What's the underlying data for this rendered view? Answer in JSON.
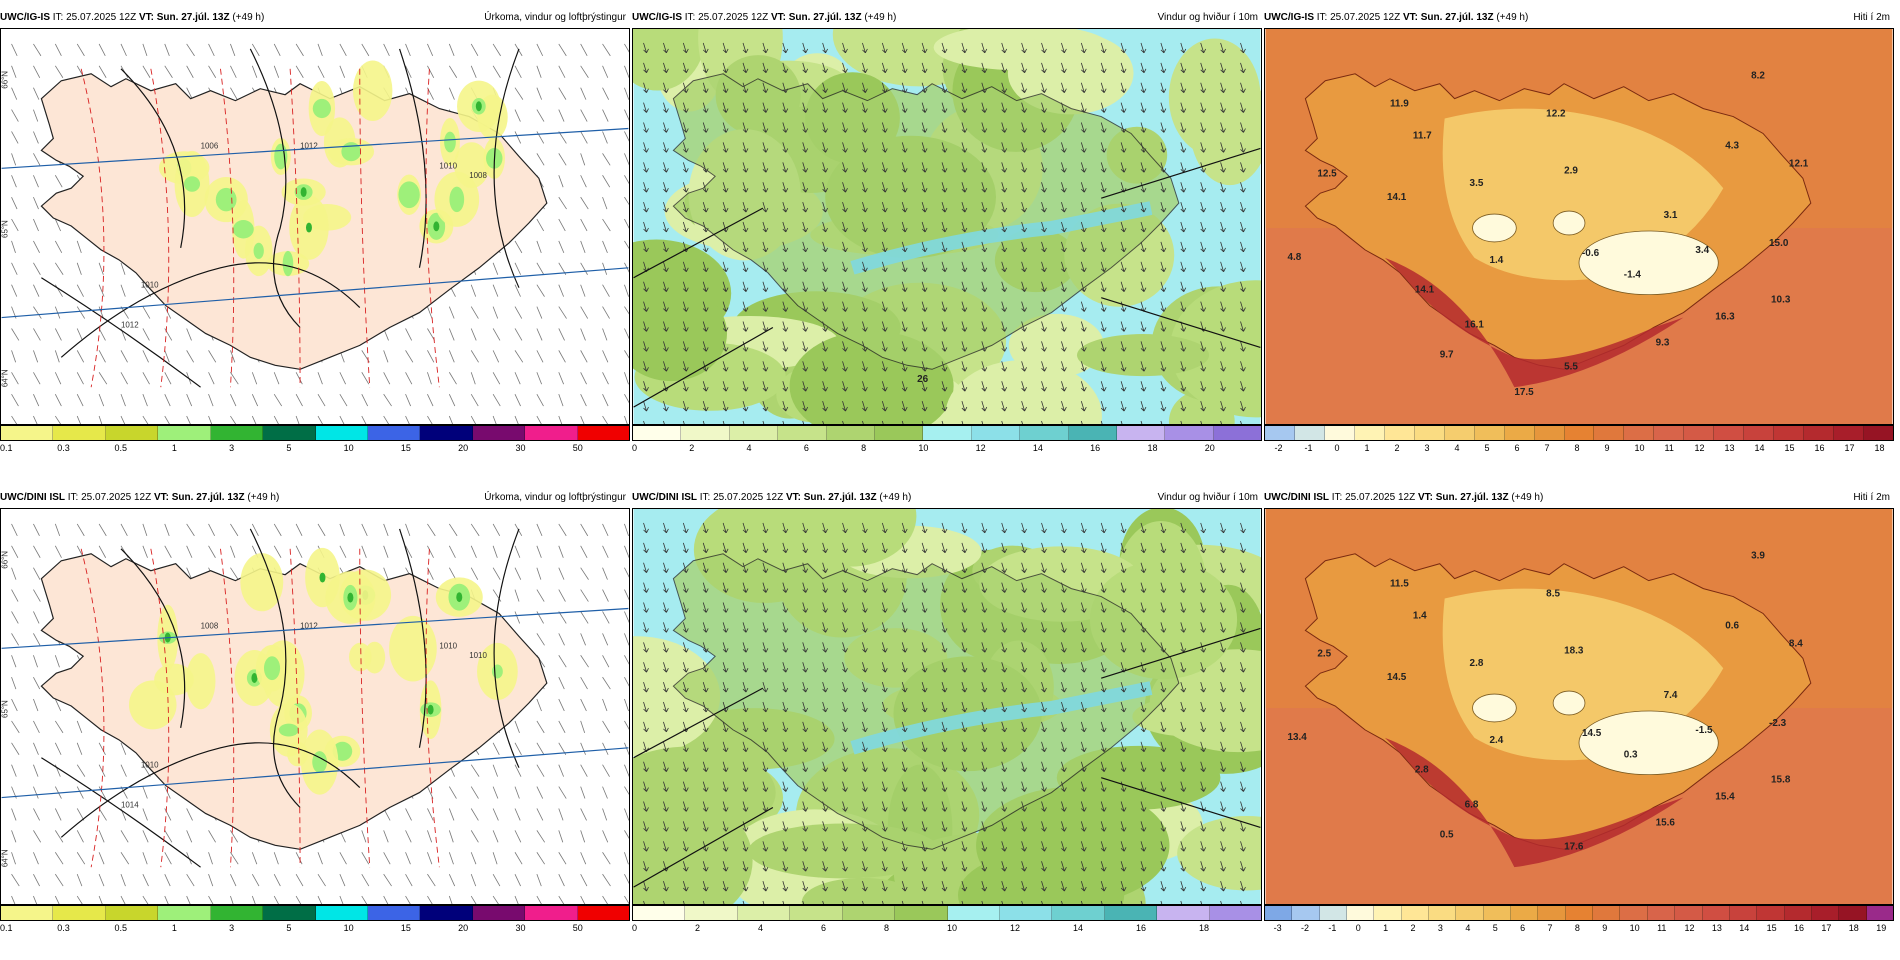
{
  "panels": [
    {
      "model": "UWC/IG-IS",
      "it_label": "IT:",
      "it": "25.07.2025 12Z",
      "vt_label": "VT:",
      "vt": "Sun. 27.júl. 13Z",
      "lead": "(+49 h)",
      "title": "Úrkoma, vindur og loftþrýstingur",
      "type": "precip",
      "scale_ticks": [
        "0.1",
        "0.3",
        "0.5",
        "1",
        "3",
        "5",
        "10",
        "15",
        "20",
        "30",
        "50"
      ],
      "scale_colors": [
        "#f5f58a",
        "#e6e84a",
        "#c8d62c",
        "#9ef07a",
        "#32b432",
        "#006e46",
        "#00e6e6",
        "#3c64e6",
        "#00007a",
        "#780a6e",
        "#f01e8c",
        "#f00000"
      ],
      "isobars": [
        "1012",
        "1010",
        "1008",
        "1006",
        "1012",
        "1010"
      ],
      "lat_labels": [
        "66°N",
        "65°N",
        "64°N"
      ],
      "temps": []
    },
    {
      "model": "UWC/IG-IS",
      "it_label": "IT:",
      "it": "25.07.2025 12Z",
      "vt_label": "VT:",
      "vt": "Sun. 27.júl. 13Z",
      "lead": "(+49 h)",
      "title": "Vindur og hviður í 10m",
      "type": "wind",
      "scale_ticks": [
        "0",
        "2",
        "4",
        "6",
        "8",
        "10",
        "12",
        "14",
        "16",
        "18",
        "20"
      ],
      "scale_colors": [
        "#ffffea",
        "#f0f8c8",
        "#dcefa8",
        "#c6e38a",
        "#aed470",
        "#9ac85a",
        "#a6f0f0",
        "#8ce0e8",
        "#6ed0d0",
        "#4ab4b4",
        "#c8b4f0",
        "#a890e6",
        "#8c70d8"
      ],
      "max_label": "26",
      "temps": []
    },
    {
      "model": "UWC/IG-IS",
      "it_label": "IT:",
      "it": "25.07.2025 12Z",
      "vt_label": "VT:",
      "vt": "Sun. 27.júl. 13Z",
      "lead": "(+49 h)",
      "title": "Hiti í 2m",
      "type": "temp",
      "scale_ticks": [
        "-2",
        "-1",
        "0",
        "1",
        "2",
        "3",
        "4",
        "5",
        "6",
        "7",
        "8",
        "9",
        "10",
        "11",
        "12",
        "13",
        "14",
        "15",
        "16",
        "17",
        "18"
      ],
      "scale_colors": [
        "#a6c8f0",
        "#d2e6e6",
        "#fffadc",
        "#fff3b4",
        "#ffe696",
        "#fadc82",
        "#f5cd6e",
        "#f0be5a",
        "#ebaa46",
        "#e6963c",
        "#e68232",
        "#e0783c",
        "#dc6e46",
        "#d8644a",
        "#d45a46",
        "#d04e42",
        "#c8423c",
        "#c03634",
        "#b42a2e",
        "#a81e2a",
        "#961424"
      ],
      "temps": [
        "11.9",
        "11.7",
        "12.2",
        "8.2",
        "12.5",
        "4.3",
        "12.1",
        "14.1",
        "2.9",
        "3.5",
        "3.1",
        "4.8",
        "1.4",
        "-0.6",
        "-1.4",
        "3.4",
        "15.0",
        "14.1",
        "10.3",
        "16.1",
        "16.3",
        "9.7",
        "9.3",
        "5.5",
        "17.5"
      ]
    },
    {
      "model": "UWC/DINI ISL",
      "it_label": "IT:",
      "it": "25.07.2025 12Z",
      "vt_label": "VT:",
      "vt": "Sun. 27.júl. 13Z",
      "lead": "(+49 h)",
      "title": "Úrkoma, vindur og loftþrýstingur",
      "type": "precip",
      "scale_ticks": [
        "0.1",
        "0.3",
        "0.5",
        "1",
        "3",
        "5",
        "10",
        "15",
        "20",
        "30",
        "50"
      ],
      "scale_colors": [
        "#f5f58a",
        "#e6e84a",
        "#c8d62c",
        "#9ef07a",
        "#32b432",
        "#006e46",
        "#00e6e6",
        "#3c64e6",
        "#00007a",
        "#780a6e",
        "#f01e8c",
        "#f00000"
      ],
      "isobars": [
        "1012",
        "1010",
        "1010",
        "1008",
        "1014",
        "1010"
      ],
      "lat_labels": [
        "66°N",
        "65°N",
        "64°N"
      ],
      "temps": []
    },
    {
      "model": "UWC/DINI ISL",
      "it_label": "IT:",
      "it": "25.07.2025 12Z",
      "vt_label": "VT:",
      "vt": "Sun. 27.júl. 13Z",
      "lead": "(+49 h)",
      "title": "Vindur og hviður í 10m",
      "type": "wind",
      "scale_ticks": [
        "0",
        "2",
        "4",
        "6",
        "8",
        "10",
        "12",
        "14",
        "16",
        "18"
      ],
      "scale_colors": [
        "#ffffea",
        "#f0f8c8",
        "#dcefa8",
        "#c6e38a",
        "#aed470",
        "#9ac85a",
        "#a6f0f0",
        "#8ce0e8",
        "#6ed0d0",
        "#4ab4b4",
        "#c8b4f0",
        "#a890e6"
      ],
      "temps": []
    },
    {
      "model": "UWC/DINI ISL",
      "it_label": "IT:",
      "it": "25.07.2025 12Z",
      "vt_label": "VT:",
      "vt": "Sun. 27.júl. 13Z",
      "lead": "(+49 h)",
      "title": "Hiti í 2m",
      "type": "temp",
      "scale_ticks": [
        "-3",
        "-2",
        "-1",
        "0",
        "1",
        "2",
        "3",
        "4",
        "5",
        "6",
        "7",
        "8",
        "9",
        "10",
        "11",
        "12",
        "13",
        "14",
        "15",
        "16",
        "17",
        "18",
        "19"
      ],
      "scale_colors": [
        "#7ea8e6",
        "#a6c8f0",
        "#d2e6e6",
        "#fffadc",
        "#fff3b4",
        "#ffe696",
        "#fadc82",
        "#f5cd6e",
        "#f0be5a",
        "#ebaa46",
        "#e6963c",
        "#e68232",
        "#e0783c",
        "#dc6e46",
        "#d8644a",
        "#d45a46",
        "#d04e42",
        "#c8423c",
        "#c03634",
        "#b42a2e",
        "#a81e2a",
        "#961424",
        "#9a2a8a"
      ],
      "temps": [
        "11.5",
        "1.4",
        "8.5",
        "3.9",
        "2.5",
        "0.6",
        "8.4",
        "14.5",
        "18.3",
        "2.8",
        "7.4",
        "13.4",
        "2.4",
        "14.5",
        "0.3",
        "-1.5",
        "-2.3",
        "2.8",
        "15.8",
        "6.8",
        "15.4",
        "0.5",
        "15.6",
        "17.6"
      ]
    }
  ]
}
